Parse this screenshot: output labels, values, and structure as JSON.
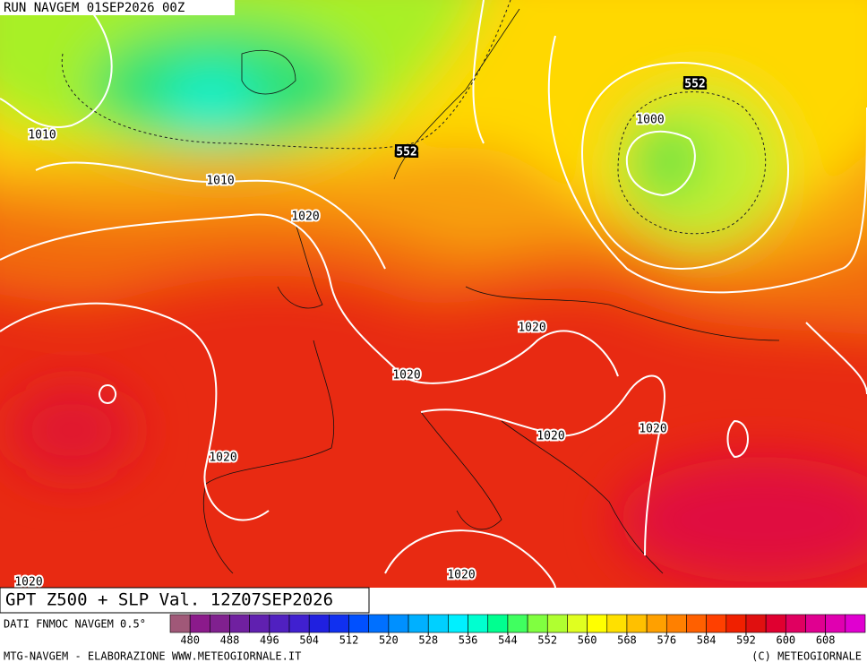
{
  "header": {
    "run": "RUN NAVGEM 01SEP2026 00Z"
  },
  "map": {
    "contour_labels": [
      "1010",
      "1010",
      "1020",
      "552",
      "552",
      "1000",
      "1020",
      "1020",
      "1020",
      "1020",
      "1020",
      "1020",
      "1020"
    ]
  },
  "title": "GPT Z500 + SLP Val. 12Z07SEP2026",
  "source": "DATI FNMOC NAVGEM 0.5°",
  "colorbar": {
    "lim": [
      476,
      616
    ],
    "ticks": [
      480,
      488,
      496,
      504,
      512,
      520,
      528,
      536,
      544,
      552,
      560,
      568,
      576,
      584,
      592,
      600,
      608
    ],
    "colors": [
      "#a05878",
      "#8b1a8b",
      "#80208f",
      "#7020a0",
      "#6020b0",
      "#5020c0",
      "#4020d0",
      "#2020e0",
      "#1030f0",
      "#0050ff",
      "#0070ff",
      "#0090ff",
      "#00b0ff",
      "#00d0ff",
      "#00f0ff",
      "#00ffd0",
      "#00ff90",
      "#40ff60",
      "#80ff40",
      "#b0ff30",
      "#e0ff20",
      "#ffff00",
      "#ffe000",
      "#ffc000",
      "#ffa000",
      "#ff8000",
      "#ff6000",
      "#ff4000",
      "#f02000",
      "#e01010",
      "#e00030",
      "#e00060",
      "#e00090",
      "#e000b0",
      "#e000d0"
    ]
  },
  "footer": {
    "left": "MTG-NAVGEM - ELABORAZIONE WWW.METEOGIORNALE.IT",
    "right": "(C) METEOGIORNALE"
  }
}
